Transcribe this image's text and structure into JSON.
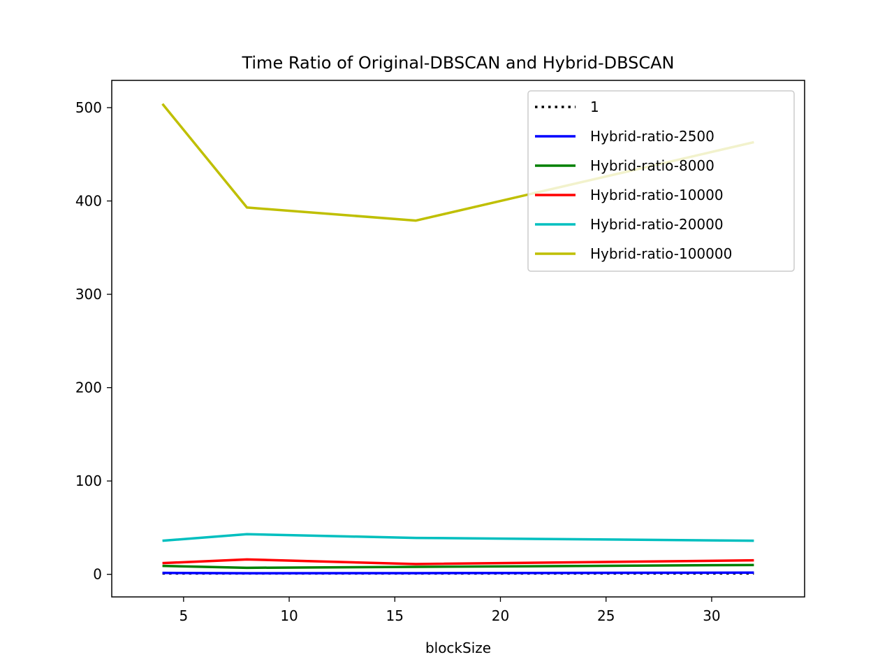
{
  "chart_data": {
    "type": "line",
    "title": "Time Ratio of Original-DBSCAN and Hybrid-DBSCAN",
    "xlabel": "blockSize",
    "ylabel": "",
    "x": [
      4,
      8,
      16,
      32
    ],
    "xlim": [
      1.6,
      34.4
    ],
    "ylim": [
      -24.2,
      529.2
    ],
    "xticks": [
      5,
      10,
      15,
      20,
      25,
      30
    ],
    "yticks": [
      0,
      100,
      200,
      300,
      400,
      500
    ],
    "grid": false,
    "legend_position": "top-right",
    "series": [
      {
        "name": "1",
        "values": [
          1,
          1,
          1,
          1
        ],
        "color": "#000000",
        "dash": "dotted"
      },
      {
        "name": "Hybrid-ratio-2500",
        "values": [
          1.5,
          1.2,
          1.3,
          1.8
        ],
        "color": "#0000ff",
        "dash": "solid"
      },
      {
        "name": "Hybrid-ratio-8000",
        "values": [
          9,
          7,
          8,
          10
        ],
        "color": "#008000",
        "dash": "solid"
      },
      {
        "name": "Hybrid-ratio-10000",
        "values": [
          12,
          16,
          11,
          15
        ],
        "color": "#ff0000",
        "dash": "solid"
      },
      {
        "name": "Hybrid-ratio-20000",
        "values": [
          36,
          43,
          39,
          36
        ],
        "color": "#00bfbf",
        "dash": "solid"
      },
      {
        "name": "Hybrid-ratio-100000",
        "values": [
          504,
          393,
          379,
          463
        ],
        "color": "#bfbf00",
        "dash": "solid"
      }
    ]
  }
}
